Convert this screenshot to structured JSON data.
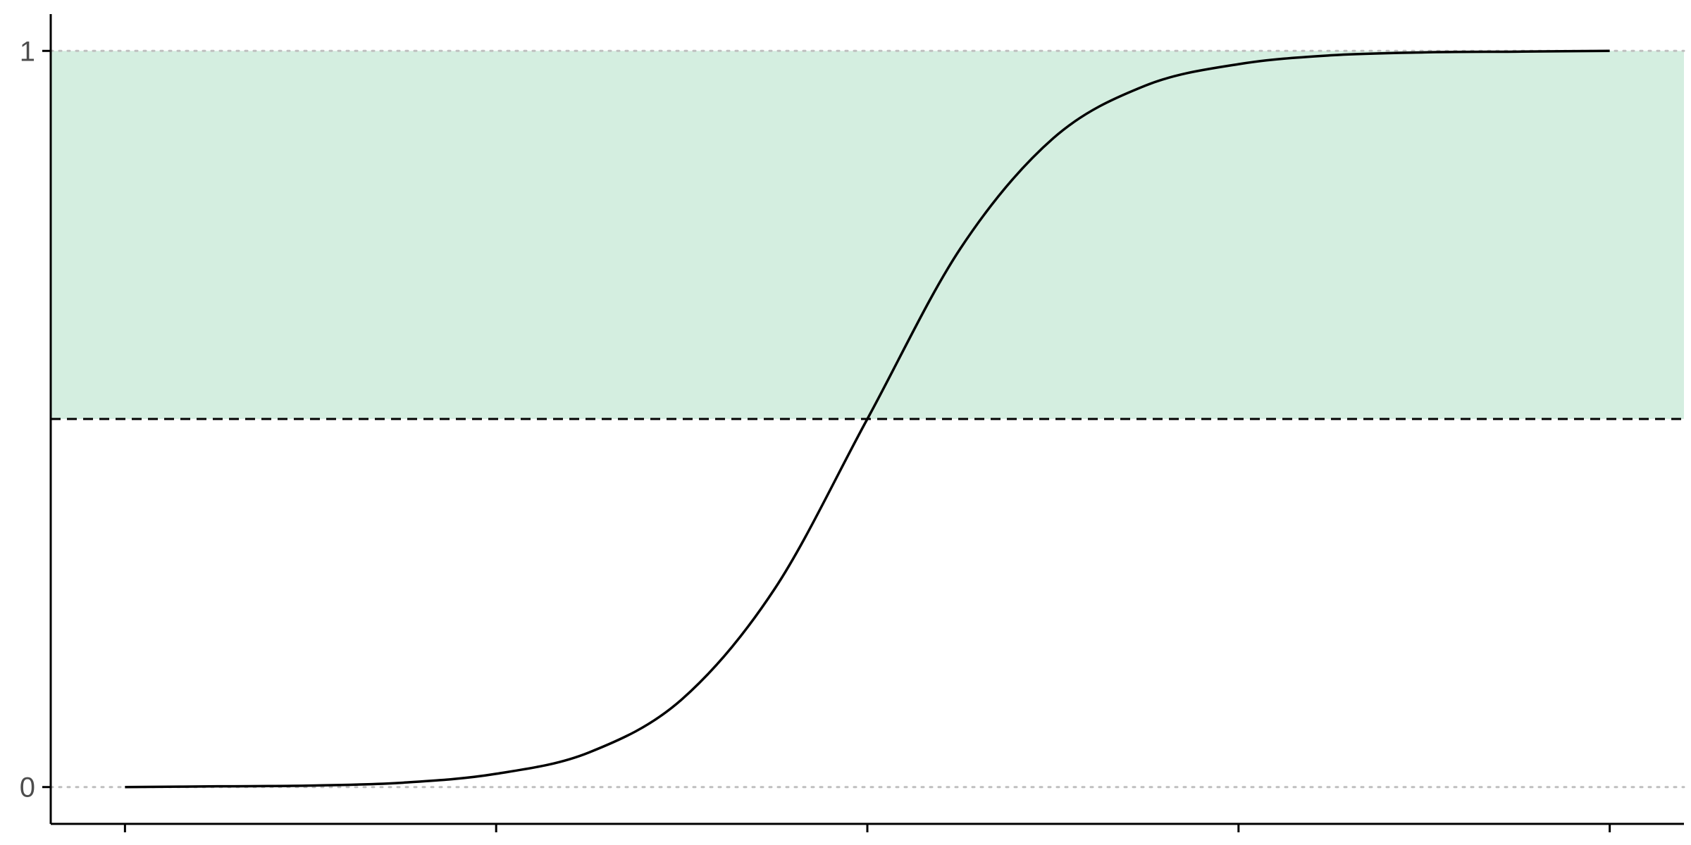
{
  "chart_data": {
    "type": "line",
    "title": "",
    "xlabel": "",
    "ylabel": "",
    "xlim": [
      -0.2,
      4.2
    ],
    "ylim": [
      -0.05,
      1.05
    ],
    "x_ticks": [
      0,
      1,
      2,
      3,
      4
    ],
    "x_tick_labels": [
      "",
      "",
      "",
      "",
      ""
    ],
    "y_ticks": [
      0,
      1
    ],
    "y_tick_labels": [
      "0",
      "1"
    ],
    "grid": false,
    "series": [
      {
        "name": "",
        "x": [
          0,
          0.25,
          0.5,
          0.75,
          1.0,
          1.25,
          1.5,
          1.75,
          2.0,
          2.25,
          2.5,
          2.75,
          3.0,
          3.25,
          3.5,
          3.75,
          4.0
        ],
        "y": [
          0.0,
          0.001,
          0.002,
          0.006,
          0.018,
          0.047,
          0.119,
          0.269,
          0.5,
          0.731,
          0.881,
          0.953,
          0.982,
          0.994,
          0.998,
          0.999,
          1.0
        ]
      }
    ],
    "reference_lines": [
      {
        "y": 0,
        "style": "dotted",
        "color": "#bfbfbf"
      },
      {
        "y": 1,
        "style": "dotted",
        "color": "#bfbfbf"
      },
      {
        "y": 0.5,
        "style": "dashed",
        "color": "#000000"
      }
    ],
    "shaded_band": {
      "y_from": 0.5,
      "y_to": 1,
      "color": "#d4eee0"
    },
    "colors": {
      "line": "#000000",
      "band": "#d4eee0",
      "axis": "#000000",
      "ref_dotted": "#bfbfbf"
    }
  }
}
